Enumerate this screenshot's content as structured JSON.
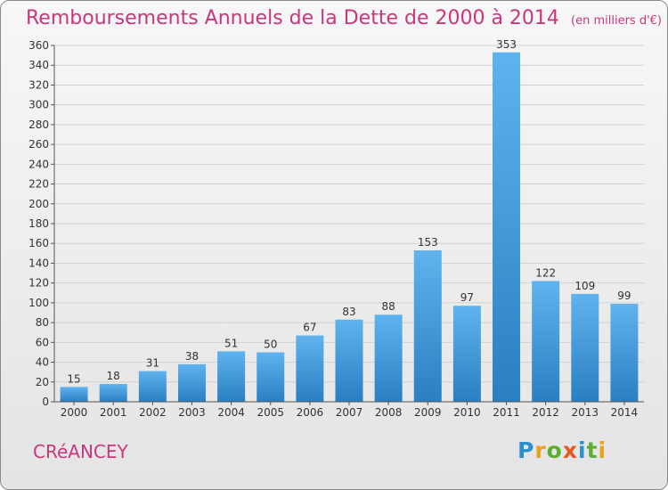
{
  "chart_data": {
    "type": "bar",
    "title": "Remboursements Annuels de la Dette de 2000 à 2014",
    "subtitle": "(en milliers d'€)",
    "categories": [
      "2000",
      "2001",
      "2002",
      "2003",
      "2004",
      "2005",
      "2006",
      "2007",
      "2008",
      "2009",
      "2010",
      "2011",
      "2012",
      "2013",
      "2014"
    ],
    "values": [
      15,
      18,
      31,
      38,
      51,
      50,
      67,
      83,
      88,
      153,
      97,
      353,
      122,
      109,
      99
    ],
    "ylim": [
      0,
      360
    ],
    "yticks": [
      0,
      20,
      40,
      60,
      80,
      100,
      120,
      140,
      160,
      180,
      200,
      220,
      240,
      260,
      280,
      300,
      320,
      340,
      360
    ],
    "grid": true,
    "bar_color": "#3e9ce0"
  },
  "footer": {
    "commune": "CRéANCEY",
    "logo_letters": [
      "P",
      "r",
      "o",
      "x",
      "i",
      "t",
      "i"
    ]
  },
  "colors": {
    "title": "#c8377c",
    "grid": "#d2d2d2",
    "bar_light": "#5fb3ee",
    "bar_dark": "#2a7fc2"
  }
}
